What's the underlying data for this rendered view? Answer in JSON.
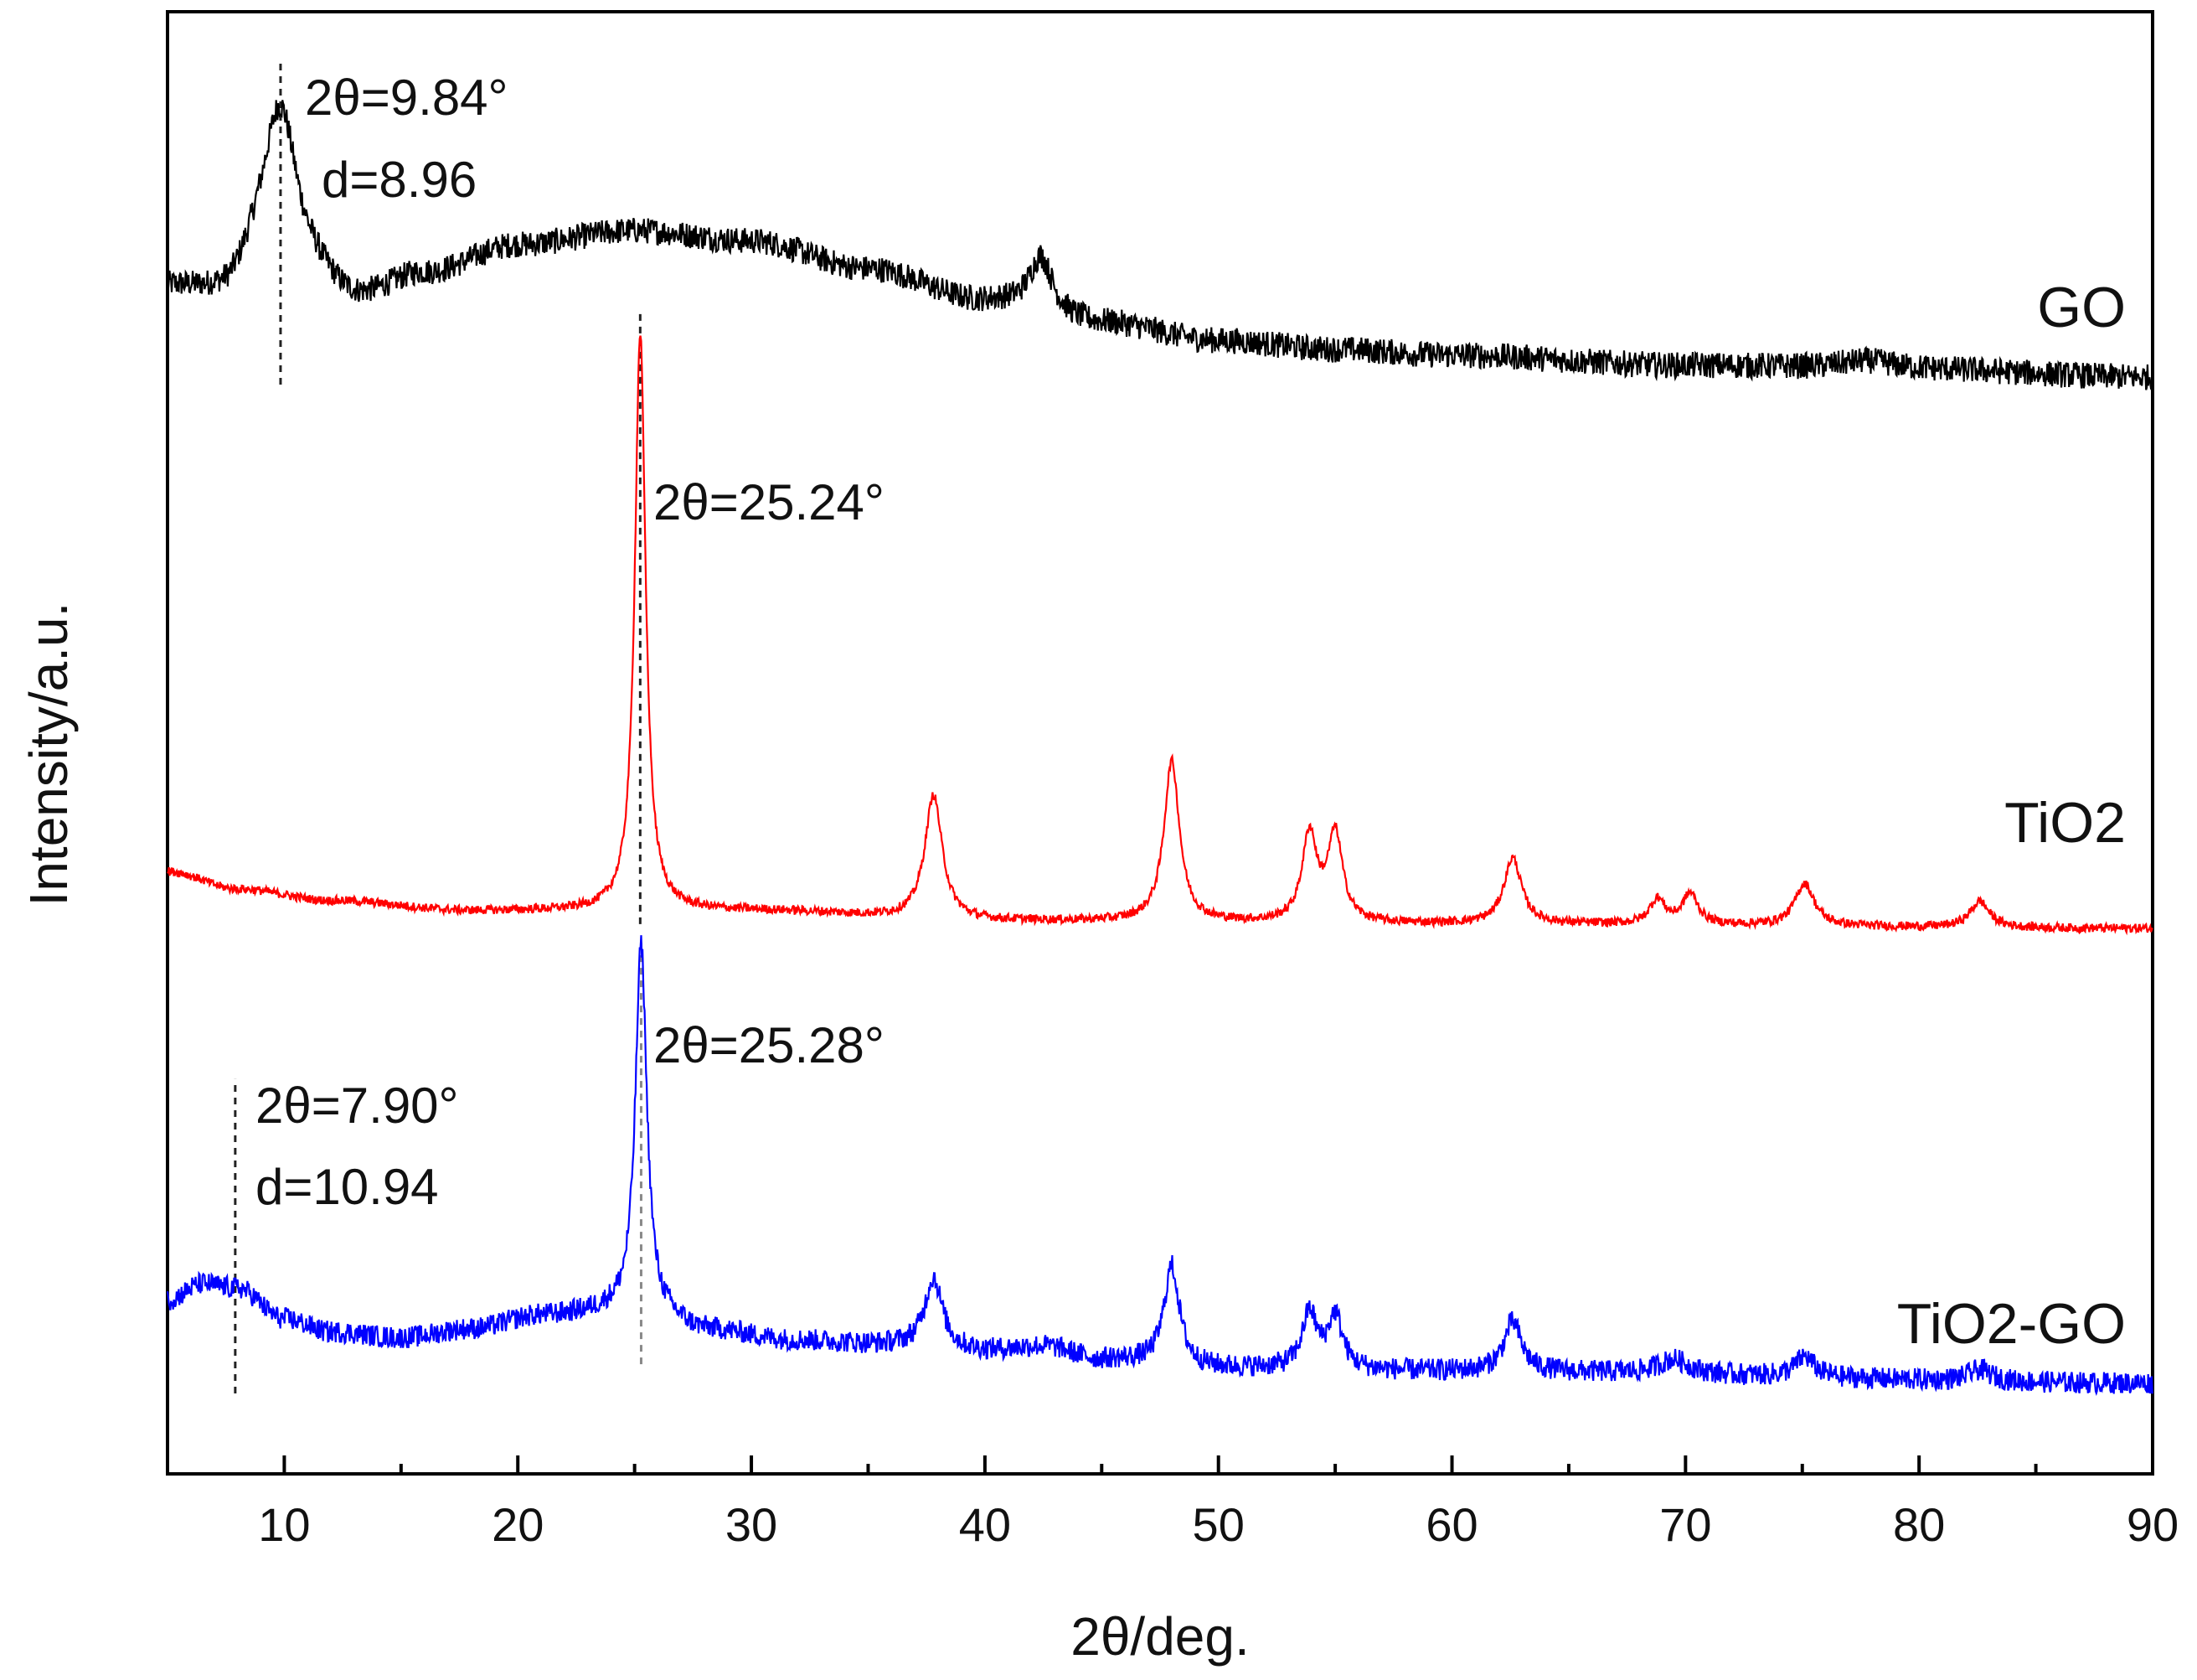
{
  "chart_data": {
    "type": "line",
    "title": "",
    "xlabel": "2θ/deg.",
    "ylabel": "Intensity/a.u.",
    "xlim": [
      5,
      90
    ],
    "ylim": [
      0,
      100
    ],
    "xticks": [
      10,
      20,
      30,
      40,
      50,
      60,
      70,
      80,
      90
    ],
    "xtick_labels": [
      "10",
      "20",
      "30",
      "40",
      "50",
      "60",
      "70",
      "80",
      "90"
    ],
    "yticks_shown": false,
    "grid": false,
    "legend": "inline labels at right",
    "series": [
      {
        "name": "GO",
        "label": "GO",
        "color": "#000000",
        "baseline": [
          [
            5,
            81
          ],
          [
            7.5,
            80.5
          ],
          [
            9,
            82.5
          ],
          [
            11,
            81.5
          ],
          [
            13,
            80.2
          ],
          [
            16,
            82
          ],
          [
            20,
            84
          ],
          [
            25,
            85
          ],
          [
            30,
            84.3
          ],
          [
            35,
            82.4
          ],
          [
            40,
            80.2
          ],
          [
            45,
            78.7
          ],
          [
            50,
            77.5
          ],
          [
            55,
            76.9
          ],
          [
            60,
            76.5
          ],
          [
            70,
            75.8
          ],
          [
            80,
            75.5
          ],
          [
            90,
            75
          ]
        ],
        "peaks": [
          {
            "x": 9.84,
            "height": 11.5,
            "width": 0.9
          },
          {
            "x": 42.4,
            "height": 3.8,
            "width": 0.6
          },
          {
            "x": 77.8,
            "height": 0.6,
            "width": 1.5
          }
        ],
        "noise": 0.9
      },
      {
        "name": "TiO2",
        "label": "TiO2",
        "color": "#ff0000",
        "baseline": [
          [
            5,
            41.2
          ],
          [
            8,
            40
          ],
          [
            12,
            39.2
          ],
          [
            18,
            38.5
          ],
          [
            24,
            38.5
          ],
          [
            30,
            38.5
          ],
          [
            40,
            37.8
          ],
          [
            60,
            37.6
          ],
          [
            90,
            37.3
          ]
        ],
        "peaks": [
          {
            "x": 25.24,
            "height": 39.5,
            "width": 0.28
          },
          {
            "x": 37.8,
            "height": 8.5,
            "width": 0.45
          },
          {
            "x": 48.0,
            "height": 11.0,
            "width": 0.4
          },
          {
            "x": 53.9,
            "height": 6.0,
            "width": 0.38
          },
          {
            "x": 55.0,
            "height": 6.0,
            "width": 0.38
          },
          {
            "x": 62.6,
            "height": 4.5,
            "width": 0.45
          },
          {
            "x": 68.8,
            "height": 1.7,
            "width": 0.4
          },
          {
            "x": 70.2,
            "height": 2.1,
            "width": 0.4
          },
          {
            "x": 75.1,
            "height": 2.9,
            "width": 0.5
          },
          {
            "x": 82.6,
            "height": 1.8,
            "width": 0.5
          }
        ],
        "noise": 0.3
      },
      {
        "name": "TiO2-GO",
        "label": "TiO2-GO",
        "color": "#0000ff",
        "baseline": [
          [
            5,
            11.9
          ],
          [
            6.5,
            13
          ],
          [
            8,
            12.7
          ],
          [
            10,
            10.6
          ],
          [
            12,
            9.7
          ],
          [
            15,
            9.3
          ],
          [
            18,
            9.9
          ],
          [
            21,
            10.8
          ],
          [
            24,
            11.1
          ],
          [
            26,
            10.6
          ],
          [
            28,
            9.8
          ],
          [
            32,
            9.1
          ],
          [
            36,
            8.8
          ],
          [
            40,
            8.4
          ],
          [
            42.5,
            8.7
          ],
          [
            45,
            7.8
          ],
          [
            50,
            7.2
          ],
          [
            60,
            7.0
          ],
          [
            90,
            6.2
          ]
        ],
        "peaks": [
          {
            "x": 25.28,
            "height": 25.5,
            "width": 0.3
          },
          {
            "x": 37.8,
            "height": 4.8,
            "width": 0.45
          },
          {
            "x": 48.0,
            "height": 6.8,
            "width": 0.4
          },
          {
            "x": 53.9,
            "height": 3.8,
            "width": 0.38
          },
          {
            "x": 55.0,
            "height": 3.6,
            "width": 0.38
          },
          {
            "x": 62.6,
            "height": 3.4,
            "width": 0.45
          },
          {
            "x": 69.5,
            "height": 1.0,
            "width": 0.8
          },
          {
            "x": 75.1,
            "height": 1.4,
            "width": 0.5
          },
          {
            "x": 82.6,
            "height": 0.8,
            "width": 0.6
          }
        ],
        "noise": 0.75
      }
    ],
    "annotations": [
      {
        "text": "2θ=9.84°",
        "series": "GO",
        "x": 9.84,
        "dashed_from_y": 74.5,
        "dashed_to_y": 96.5
      },
      {
        "text": "d=8.96",
        "series": "GO"
      },
      {
        "text": "2θ=25.24°",
        "series": "TiO2",
        "x": 25.24,
        "dashed_from_y": 37.6,
        "dashed_to_y": 79.5
      },
      {
        "text": "2θ=25.28°",
        "series": "TiO2-GO",
        "x": 25.28,
        "dashed_from_y": 7.5,
        "dashed_to_y": 36.5
      },
      {
        "text": "2θ=7.90°",
        "series": "TiO2-GO",
        "x": 7.9,
        "dashed_from_y": 5.5,
        "dashed_to_y": 27
      },
      {
        "text": "d=10.94",
        "series": "TiO2-GO"
      }
    ]
  }
}
